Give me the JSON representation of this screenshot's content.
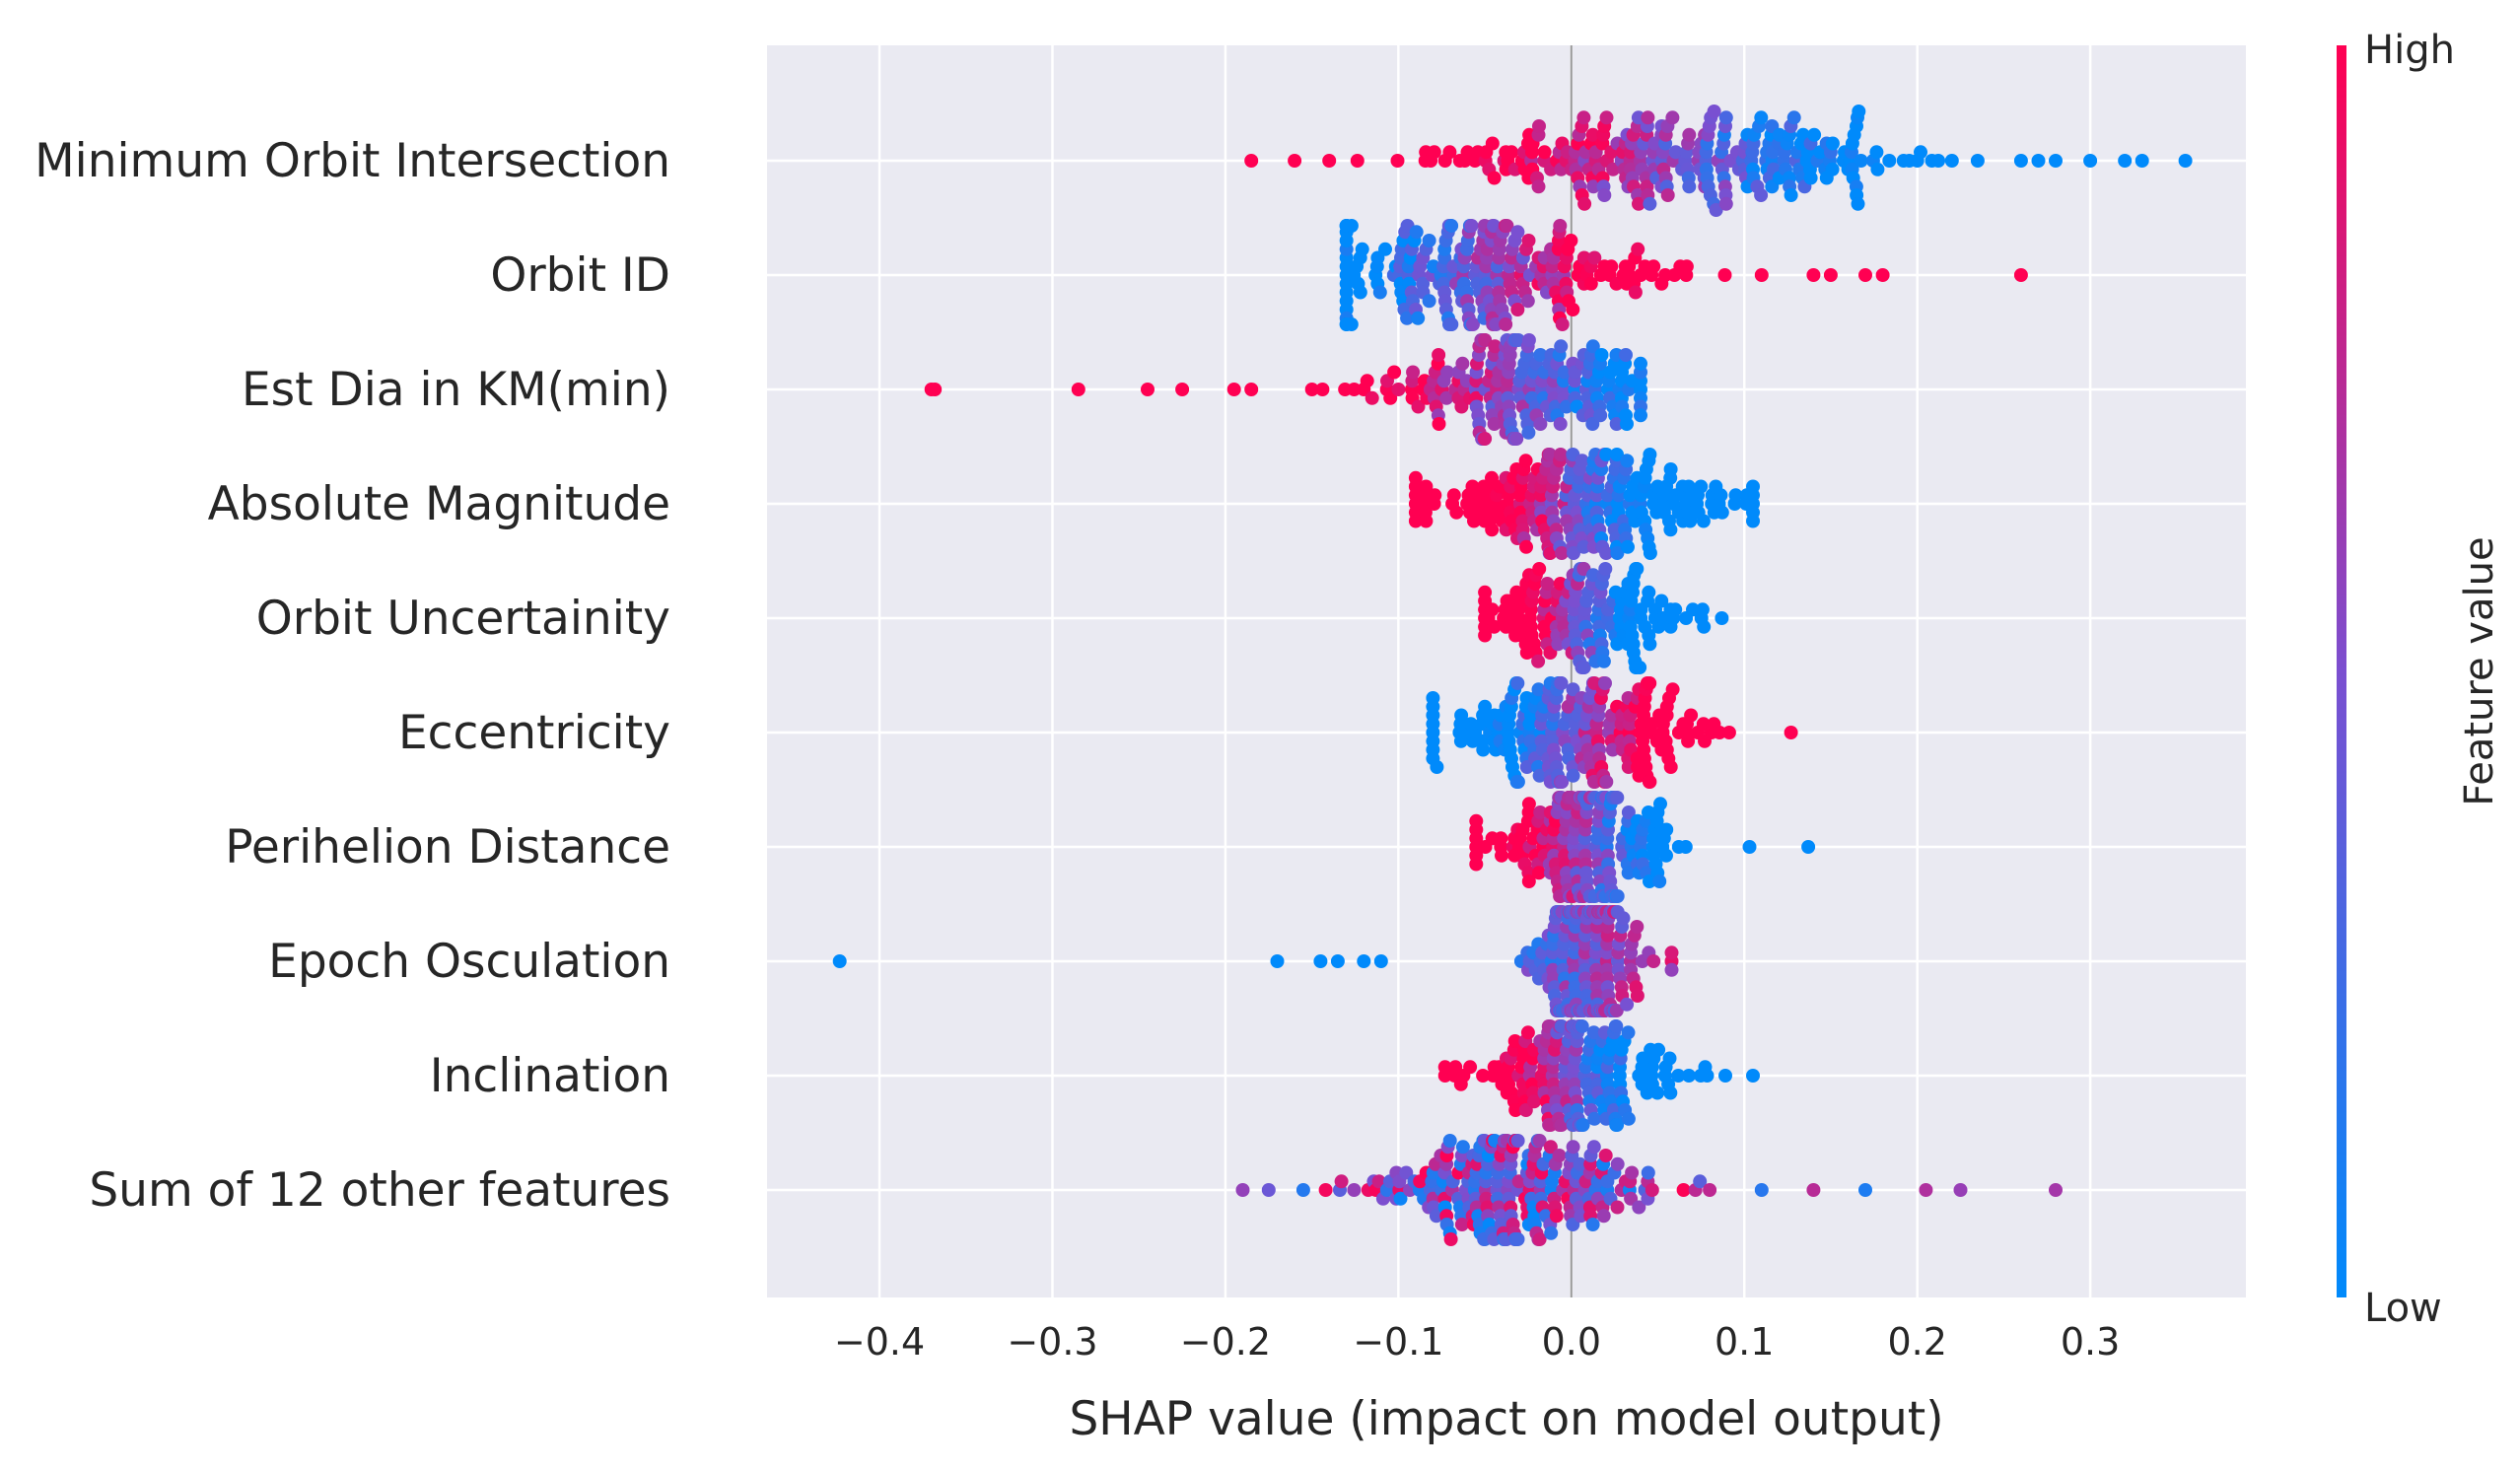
{
  "chart_data": {
    "type": "scatter",
    "subtype": "shap-beeswarm",
    "title": "",
    "xlabel": "SHAP value (impact on model output)",
    "ylabel": "",
    "xlim": [
      -0.465,
      0.39
    ],
    "xticks": [
      -0.4,
      -0.3,
      -0.2,
      -0.1,
      0.0,
      0.1,
      0.2,
      0.3
    ],
    "xtick_labels": [
      "−0.4",
      "−0.3",
      "−0.2",
      "−0.1",
      "0.0",
      "0.1",
      "0.2",
      "0.3"
    ],
    "grid": true,
    "background": "#eaeaf2",
    "colormap": {
      "low_color": "#008afb",
      "mid_color": "#7b4fd0",
      "high_color": "#ff0052",
      "high_label": "High",
      "low_label": "Low",
      "title": "Feature value"
    },
    "features": [
      {
        "name": "Minimum Orbit Intersection",
        "range": [
          -0.19,
          0.355
        ],
        "center": 0.06,
        "spread": 0.07,
        "n": 260,
        "color_trend": "high-left",
        "outliers": [
          -0.185,
          -0.16,
          -0.14,
          0.3,
          0.32,
          0.33,
          0.355,
          0.28,
          0.27,
          0.26,
          0.22,
          0.2
        ]
      },
      {
        "name": "Orbit ID",
        "range": [
          -0.13,
          0.26
        ],
        "center": -0.05,
        "spread": 0.05,
        "n": 230,
        "color_trend": "high-right",
        "outliers": [
          -0.13,
          0.11,
          0.14,
          0.15,
          0.17,
          0.18,
          0.26
        ]
      },
      {
        "name": "Est Dia in KM(min)",
        "range": [
          -0.37,
          0.04
        ],
        "center": -0.03,
        "spread": 0.04,
        "n": 200,
        "color_trend": "high-left",
        "outliers": [
          -0.37,
          -0.368,
          -0.285,
          -0.245,
          -0.225,
          -0.195,
          -0.185,
          -0.12,
          -0.1
        ]
      },
      {
        "name": "Absolute Magnitude",
        "range": [
          -0.09,
          0.105
        ],
        "center": 0.0,
        "spread": 0.05,
        "n": 230,
        "color_trend": "high-left",
        "outliers": [
          0.105,
          0.095
        ]
      },
      {
        "name": "Orbit Uncertainity",
        "range": [
          -0.05,
          0.087
        ],
        "center": 0.005,
        "spread": 0.03,
        "n": 160,
        "color_trend": "high-left",
        "outliers": [
          -0.048,
          0.087
        ]
      },
      {
        "name": "Eccentricity",
        "range": [
          -0.08,
          0.127
        ],
        "center": 0.0,
        "spread": 0.04,
        "n": 220,
        "color_trend": "high-right",
        "outliers": [
          -0.08,
          0.127
        ]
      },
      {
        "name": "Perihelion Distance",
        "range": [
          -0.055,
          0.137
        ],
        "center": 0.01,
        "spread": 0.025,
        "n": 200,
        "color_trend": "high-left",
        "outliers": [
          -0.055,
          0.103,
          0.137
        ]
      },
      {
        "name": "Epoch Osculation",
        "range": [
          -0.423,
          0.058
        ],
        "center": 0.01,
        "spread": 0.015,
        "n": 220,
        "color_trend": "high-right",
        "outliers": [
          -0.423,
          -0.17,
          -0.145,
          -0.135,
          -0.12,
          -0.11,
          0.058
        ]
      },
      {
        "name": "Inclination",
        "range": [
          -0.073,
          0.105
        ],
        "center": 0.0,
        "spread": 0.03,
        "n": 180,
        "color_trend": "high-left",
        "outliers": [
          -0.073,
          0.105
        ]
      },
      {
        "name": "Sum of 12 other features",
        "range": [
          -0.19,
          0.28
        ],
        "center": -0.04,
        "spread": 0.04,
        "n": 230,
        "color_trend": "mixed",
        "outliers": [
          -0.19,
          -0.175,
          -0.155,
          0.08,
          0.11,
          0.14,
          0.17,
          0.205,
          0.225,
          0.28
        ]
      }
    ]
  }
}
